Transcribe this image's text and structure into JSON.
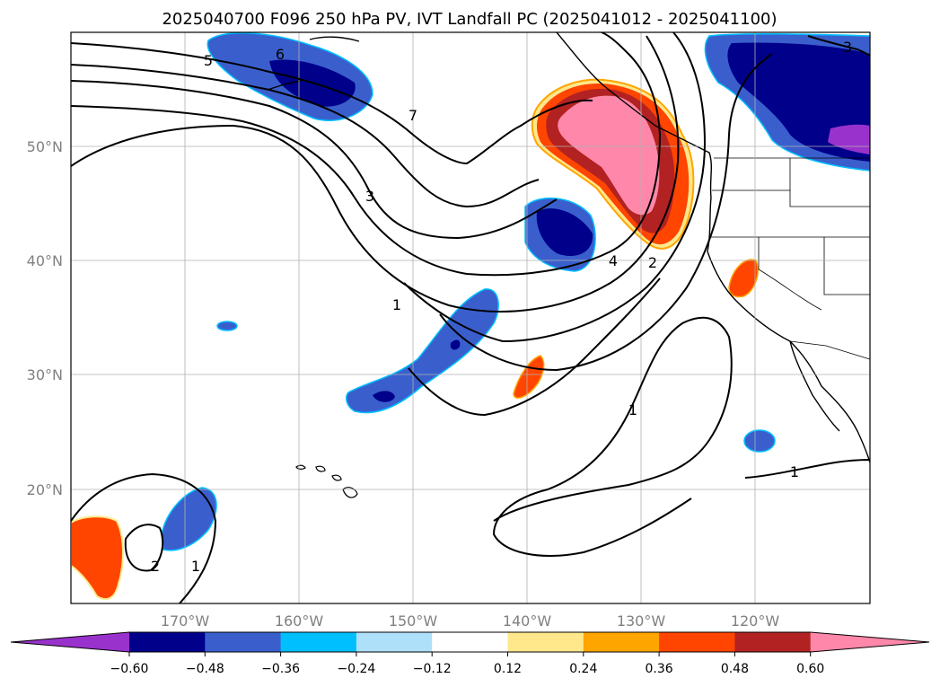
{
  "title": "2025040700 F096 250 hPa PV, IVT Landfall PC (2025041012 - 2025041100)",
  "map": {
    "lat_labels": [
      "50°N",
      "40°N",
      "30°N",
      "20°N"
    ],
    "lon_labels": [
      "170°W",
      "160°W",
      "150°W",
      "140°W",
      "130°W",
      "120°W"
    ],
    "contour_labels": [
      "5",
      "6",
      "7",
      "3",
      "1",
      "4",
      "2",
      "1",
      "1",
      "2",
      "1",
      "3"
    ]
  },
  "colorbar": {
    "ticks": [
      "−0.60",
      "−0.48",
      "−0.36",
      "−0.24",
      "−0.12",
      "0.12",
      "0.24",
      "0.36",
      "0.48",
      "0.60"
    ],
    "colors": [
      "#9932cc",
      "#00008b",
      "#3a5fcd",
      "#00bfff",
      "#afe0fa",
      "#ffffff",
      "#ffe88c",
      "#ffa500",
      "#ff4500",
      "#b22222",
      "#ff88aa"
    ]
  }
}
